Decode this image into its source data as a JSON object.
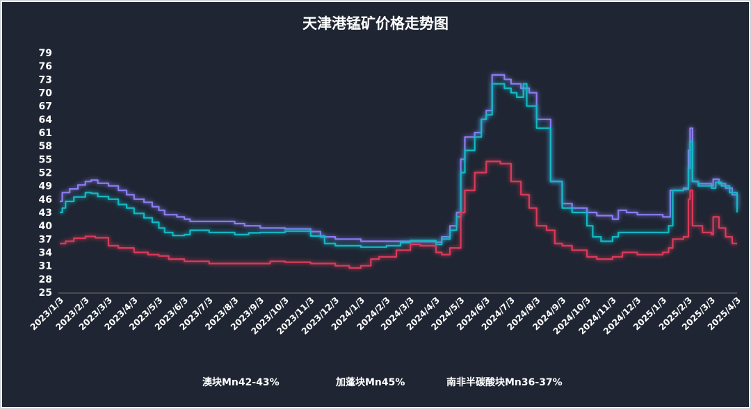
{
  "chart_data": {
    "type": "line",
    "title": "天津港锰矿价格走势图",
    "y_ticks": [
      25,
      28,
      31,
      34,
      37,
      40,
      43,
      46,
      49,
      52,
      55,
      58,
      61,
      64,
      67,
      70,
      73,
      76,
      79
    ],
    "ylim": [
      25,
      79
    ],
    "x_ticks": [
      "2023/1/3",
      "2023/2/3",
      "2023/3/3",
      "2023/4/3",
      "2023/5/3",
      "2023/6/3",
      "2023/7/3",
      "2023/8/3",
      "2023/9/3",
      "2023/10/3",
      "2023/11/3",
      "2023/12/3",
      "2024/1/3",
      "2024/2/3",
      "2024/3/3",
      "2024/4/3",
      "2024/5/3",
      "2024/6/3",
      "2024/7/3",
      "2024/8/3",
      "2024/9/3",
      "2024/10/3",
      "2024/11/3",
      "2024/12/3",
      "2025/1/3",
      "2025/2/3",
      "2025/3/3",
      "2025/4/3"
    ],
    "xlim": [
      "2023-01-03",
      "2025-04-03"
    ],
    "legend_position": "bottom",
    "series": [
      {
        "name": "澳块Mn42-43%",
        "color": "#8b7df2",
        "points": [
          [
            "2023-01-03",
            45.5
          ],
          [
            "2023-01-06",
            47.5
          ],
          [
            "2023-01-15",
            48.3
          ],
          [
            "2023-01-25",
            49.2
          ],
          [
            "2023-02-03",
            50.0
          ],
          [
            "2023-02-10",
            50.3
          ],
          [
            "2023-02-18",
            49.6
          ],
          [
            "2023-03-03",
            49.0
          ],
          [
            "2023-03-15",
            48.0
          ],
          [
            "2023-03-25",
            47.0
          ],
          [
            "2023-04-03",
            46.0
          ],
          [
            "2023-04-15",
            45.3
          ],
          [
            "2023-04-25",
            44.3
          ],
          [
            "2023-05-03",
            43.5
          ],
          [
            "2023-05-10",
            42.5
          ],
          [
            "2023-05-25",
            42.0
          ],
          [
            "2023-06-03",
            41.5
          ],
          [
            "2023-06-10",
            41.0
          ],
          [
            "2023-07-03",
            41.0
          ],
          [
            "2023-08-03",
            40.5
          ],
          [
            "2023-08-15",
            40.0
          ],
          [
            "2023-09-03",
            39.5
          ],
          [
            "2023-10-03",
            39.3
          ],
          [
            "2023-11-03",
            38.7
          ],
          [
            "2023-11-15",
            37.5
          ],
          [
            "2023-12-03",
            37.0
          ],
          [
            "2024-01-03",
            36.5
          ],
          [
            "2024-02-03",
            36.5
          ],
          [
            "2024-03-03",
            36.4
          ],
          [
            "2024-04-03",
            36.3
          ],
          [
            "2024-04-10",
            37.5
          ],
          [
            "2024-04-20",
            40.0
          ],
          [
            "2024-04-28",
            43.0
          ],
          [
            "2024-05-03",
            55.0
          ],
          [
            "2024-05-08",
            60.0
          ],
          [
            "2024-05-20",
            61.0
          ],
          [
            "2024-05-28",
            64.0
          ],
          [
            "2024-06-03",
            66.0
          ],
          [
            "2024-06-10",
            74.0
          ],
          [
            "2024-06-25",
            73.0
          ],
          [
            "2024-07-03",
            72.0
          ],
          [
            "2024-07-15",
            71.0
          ],
          [
            "2024-07-25",
            70.0
          ],
          [
            "2024-08-03",
            64.0
          ],
          [
            "2024-08-12",
            64.0
          ],
          [
            "2024-08-20",
            50.0
          ],
          [
            "2024-09-03",
            45.0
          ],
          [
            "2024-09-15",
            44.0
          ],
          [
            "2024-10-03",
            43.0
          ],
          [
            "2024-10-15",
            42.3
          ],
          [
            "2024-11-03",
            41.5
          ],
          [
            "2024-11-10",
            43.5
          ],
          [
            "2024-11-20",
            43.0
          ],
          [
            "2024-12-03",
            42.5
          ],
          [
            "2025-01-03",
            42.0
          ],
          [
            "2025-01-08",
            42.0
          ],
          [
            "2025-01-12",
            48.0
          ],
          [
            "2025-01-28",
            48.5
          ],
          [
            "2025-02-03",
            57.0
          ],
          [
            "2025-02-05",
            62.0
          ],
          [
            "2025-02-08",
            50.0
          ],
          [
            "2025-02-15",
            49.5
          ],
          [
            "2025-03-03",
            49.0
          ],
          [
            "2025-03-05",
            50.5
          ],
          [
            "2025-03-12",
            49.5
          ],
          [
            "2025-03-20",
            48.5
          ],
          [
            "2025-03-28",
            47.0
          ],
          [
            "2025-04-03",
            44.0
          ]
        ]
      },
      {
        "name": "加蓬块Mn45%",
        "color": "#14b8c4",
        "points": [
          [
            "2023-01-03",
            43.0
          ],
          [
            "2023-01-06",
            44.0
          ],
          [
            "2023-01-10",
            45.5
          ],
          [
            "2023-01-20",
            46.5
          ],
          [
            "2023-02-03",
            47.5
          ],
          [
            "2023-02-10",
            47.3
          ],
          [
            "2023-02-18",
            46.6
          ],
          [
            "2023-03-03",
            46.0
          ],
          [
            "2023-03-15",
            44.8
          ],
          [
            "2023-03-25",
            44.0
          ],
          [
            "2023-04-03",
            42.8
          ],
          [
            "2023-04-15",
            41.8
          ],
          [
            "2023-04-25",
            40.8
          ],
          [
            "2023-05-03",
            39.5
          ],
          [
            "2023-05-10",
            38.5
          ],
          [
            "2023-05-20",
            37.8
          ],
          [
            "2023-06-03",
            38.0
          ],
          [
            "2023-06-10",
            39.0
          ],
          [
            "2023-07-03",
            38.5
          ],
          [
            "2023-08-03",
            38.0
          ],
          [
            "2023-08-20",
            38.4
          ],
          [
            "2023-09-03",
            38.5
          ],
          [
            "2023-10-03",
            38.8
          ],
          [
            "2023-11-03",
            37.7
          ],
          [
            "2023-11-20",
            36.0
          ],
          [
            "2023-12-03",
            35.5
          ],
          [
            "2024-01-03",
            35.2
          ],
          [
            "2024-02-03",
            35.5
          ],
          [
            "2024-02-20",
            36.2
          ],
          [
            "2024-03-03",
            36.7
          ],
          [
            "2024-04-03",
            35.8
          ],
          [
            "2024-04-10",
            37.0
          ],
          [
            "2024-04-20",
            39.0
          ],
          [
            "2024-04-28",
            42.0
          ],
          [
            "2024-05-03",
            52.0
          ],
          [
            "2024-05-08",
            57.0
          ],
          [
            "2024-05-20",
            60.0
          ],
          [
            "2024-05-28",
            64.0
          ],
          [
            "2024-06-03",
            65.0
          ],
          [
            "2024-06-10",
            72.0
          ],
          [
            "2024-06-25",
            71.0
          ],
          [
            "2024-07-03",
            70.0
          ],
          [
            "2024-07-10",
            69.0
          ],
          [
            "2024-07-18",
            72.0
          ],
          [
            "2024-07-22",
            67.0
          ],
          [
            "2024-08-03",
            62.0
          ],
          [
            "2024-08-12",
            62.0
          ],
          [
            "2024-08-20",
            50.0
          ],
          [
            "2024-09-03",
            44.0
          ],
          [
            "2024-09-15",
            43.0
          ],
          [
            "2024-10-03",
            40.0
          ],
          [
            "2024-10-10",
            37.5
          ],
          [
            "2024-10-20",
            36.5
          ],
          [
            "2024-11-03",
            37.5
          ],
          [
            "2024-11-10",
            38.5
          ],
          [
            "2024-12-03",
            38.5
          ],
          [
            "2025-01-03",
            38.5
          ],
          [
            "2025-01-10",
            40.0
          ],
          [
            "2025-01-15",
            48.0
          ],
          [
            "2025-01-28",
            48.2
          ],
          [
            "2025-02-03",
            53.0
          ],
          [
            "2025-02-05",
            59.0
          ],
          [
            "2025-02-08",
            50.0
          ],
          [
            "2025-02-15",
            49.0
          ],
          [
            "2025-03-03",
            48.5
          ],
          [
            "2025-03-08",
            49.8
          ],
          [
            "2025-03-15",
            49.0
          ],
          [
            "2025-03-25",
            47.5
          ],
          [
            "2025-04-03",
            43.0
          ]
        ]
      },
      {
        "name": "南非半碳酸块Mn36-37%",
        "color": "#d93a5a",
        "points": [
          [
            "2023-01-03",
            36.0
          ],
          [
            "2023-01-10",
            36.5
          ],
          [
            "2023-01-20",
            37.2
          ],
          [
            "2023-02-03",
            37.6
          ],
          [
            "2023-02-15",
            37.3
          ],
          [
            "2023-03-03",
            35.5
          ],
          [
            "2023-03-15",
            35.0
          ],
          [
            "2023-04-03",
            34.0
          ],
          [
            "2023-04-20",
            33.5
          ],
          [
            "2023-05-03",
            33.2
          ],
          [
            "2023-05-15",
            32.5
          ],
          [
            "2023-06-03",
            32.0
          ],
          [
            "2023-07-03",
            31.5
          ],
          [
            "2023-08-03",
            31.5
          ],
          [
            "2023-09-03",
            31.5
          ],
          [
            "2023-09-15",
            32.0
          ],
          [
            "2023-10-03",
            31.8
          ],
          [
            "2023-11-03",
            31.5
          ],
          [
            "2023-12-03",
            31.0
          ],
          [
            "2023-12-20",
            30.5
          ],
          [
            "2024-01-03",
            31.0
          ],
          [
            "2024-01-15",
            32.5
          ],
          [
            "2024-01-25",
            33.0
          ],
          [
            "2024-02-03",
            33.0
          ],
          [
            "2024-02-15",
            34.5
          ],
          [
            "2024-03-03",
            35.8
          ],
          [
            "2024-03-15",
            35.5
          ],
          [
            "2024-04-03",
            34.0
          ],
          [
            "2024-04-10",
            33.5
          ],
          [
            "2024-04-20",
            35.0
          ],
          [
            "2024-05-03",
            43.0
          ],
          [
            "2024-05-08",
            48.0
          ],
          [
            "2024-05-20",
            52.0
          ],
          [
            "2024-06-03",
            54.5
          ],
          [
            "2024-06-20",
            54.0
          ],
          [
            "2024-07-03",
            50.0
          ],
          [
            "2024-07-15",
            47.0
          ],
          [
            "2024-07-25",
            44.0
          ],
          [
            "2024-08-03",
            40.0
          ],
          [
            "2024-08-15",
            39.0
          ],
          [
            "2024-08-25",
            36.0
          ],
          [
            "2024-09-03",
            35.5
          ],
          [
            "2024-09-15",
            34.5
          ],
          [
            "2024-10-03",
            33.0
          ],
          [
            "2024-10-15",
            32.5
          ],
          [
            "2024-11-03",
            33.0
          ],
          [
            "2024-11-15",
            34.0
          ],
          [
            "2024-12-03",
            33.5
          ],
          [
            "2025-01-03",
            34.0
          ],
          [
            "2025-01-10",
            35.0
          ],
          [
            "2025-01-15",
            37.0
          ],
          [
            "2025-01-28",
            37.5
          ],
          [
            "2025-02-03",
            46.0
          ],
          [
            "2025-02-05",
            48.0
          ],
          [
            "2025-02-08",
            40.0
          ],
          [
            "2025-02-20",
            38.5
          ],
          [
            "2025-03-03",
            38.0
          ],
          [
            "2025-03-05",
            42.0
          ],
          [
            "2025-03-12",
            39.5
          ],
          [
            "2025-03-20",
            37.5
          ],
          [
            "2025-03-28",
            36.0
          ],
          [
            "2025-04-03",
            36.0
          ]
        ]
      }
    ]
  }
}
